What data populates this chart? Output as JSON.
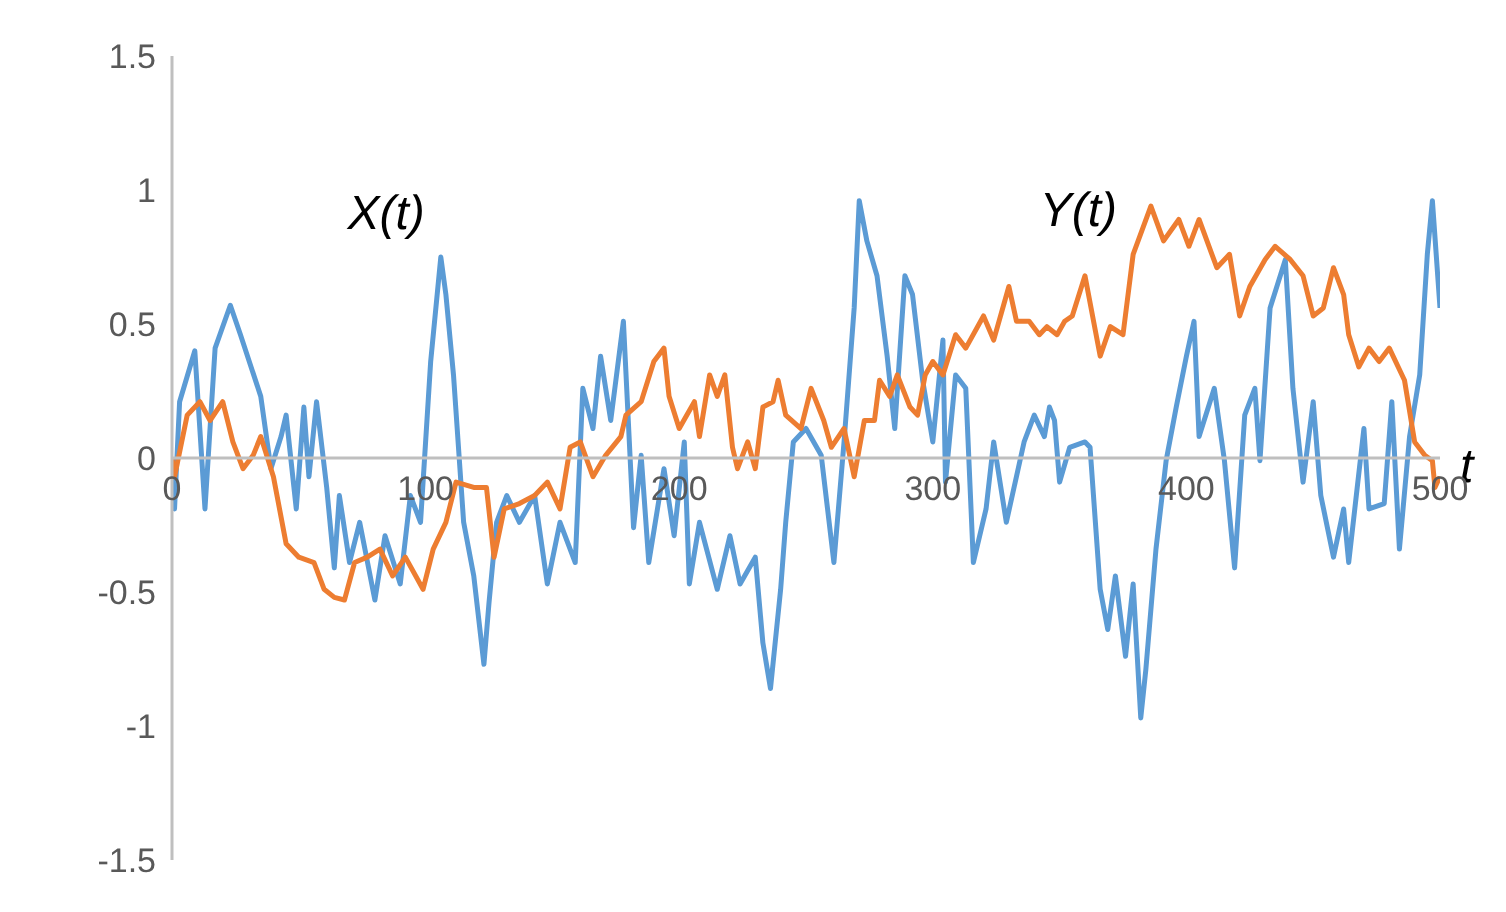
{
  "chart_data": {
    "type": "line",
    "xlabel": "t",
    "xlim": [
      0,
      500
    ],
    "xticks": [
      0,
      100,
      200,
      300,
      400,
      500
    ],
    "ylim": [
      -1.5,
      1.5
    ],
    "yticks": [
      -1.5,
      -1,
      -0.5,
      0,
      0.5,
      1,
      1.5
    ],
    "marker": "none",
    "line_style": "solid",
    "series": [
      {
        "name": "X(t)",
        "color": "#5b9bd5",
        "x": [
          0,
          1,
          3,
          9,
          13,
          17,
          23,
          27,
          35,
          39,
          43,
          45,
          49,
          52,
          54,
          57,
          61,
          64,
          66,
          70,
          74,
          80,
          84,
          90,
          94,
          98,
          102,
          106,
          108,
          111,
          115,
          119,
          123,
          125,
          128,
          132,
          137,
          143,
          148,
          153,
          159,
          162,
          166,
          169,
          173,
          178,
          182,
          185,
          188,
          194,
          198,
          202,
          204,
          208,
          215,
          220,
          224,
          230,
          233,
          236,
          240,
          242,
          245,
          250,
          256,
          261,
          265,
          269,
          271,
          274,
          278,
          282,
          285,
          289,
          292,
          296,
          300,
          304,
          305,
          309,
          313,
          316,
          321,
          324,
          329,
          336,
          340,
          344,
          346,
          348,
          350,
          354,
          360,
          362,
          366,
          369,
          372,
          376,
          379,
          382,
          384,
          388,
          392,
          396,
          400,
          403,
          405,
          411,
          415,
          419,
          423,
          427,
          429,
          433,
          439,
          442,
          446,
          450,
          453,
          458,
          462,
          464,
          470,
          472,
          478,
          481,
          484,
          488,
          492,
          495,
          497,
          500
        ],
        "values": [
          0,
          -0.19,
          0.21,
          0.4,
          -0.19,
          0.41,
          0.57,
          0.46,
          0.23,
          -0.04,
          0.08,
          0.16,
          -0.19,
          0.19,
          -0.07,
          0.21,
          -0.11,
          -0.41,
          -0.14,
          -0.39,
          -0.24,
          -0.53,
          -0.29,
          -0.47,
          -0.14,
          -0.24,
          0.36,
          0.75,
          0.61,
          0.31,
          -0.24,
          -0.44,
          -0.77,
          -0.54,
          -0.24,
          -0.14,
          -0.24,
          -0.14,
          -0.47,
          -0.24,
          -0.39,
          0.26,
          0.11,
          0.38,
          0.14,
          0.51,
          -0.26,
          0.01,
          -0.39,
          -0.04,
          -0.29,
          0.06,
          -0.47,
          -0.24,
          -0.49,
          -0.29,
          -0.47,
          -0.37,
          -0.69,
          -0.86,
          -0.49,
          -0.24,
          0.06,
          0.11,
          0.01,
          -0.39,
          0.06,
          0.56,
          0.96,
          0.81,
          0.68,
          0.38,
          0.11,
          0.68,
          0.61,
          0.29,
          0.06,
          0.44,
          -0.09,
          0.31,
          0.26,
          -0.39,
          -0.19,
          0.06,
          -0.24,
          0.06,
          0.16,
          0.08,
          0.19,
          0.14,
          -0.09,
          0.04,
          0.06,
          0.04,
          -0.49,
          -0.64,
          -0.44,
          -0.74,
          -0.47,
          -0.97,
          -0.79,
          -0.34,
          -0.01,
          0.19,
          0.38,
          0.51,
          0.08,
          0.26,
          -0.01,
          -0.41,
          0.16,
          0.26,
          -0.01,
          0.56,
          0.74,
          0.26,
          -0.09,
          0.21,
          -0.14,
          -0.37,
          -0.19,
          -0.39,
          0.11,
          -0.19,
          -0.17,
          0.21,
          -0.34,
          0.08,
          0.31,
          0.76,
          0.96,
          0.56
        ]
      },
      {
        "name": "Y(t)",
        "color": "#ed7d31",
        "x": [
          0,
          1,
          6,
          11,
          15,
          20,
          24,
          28,
          32,
          35,
          40,
          45,
          50,
          56,
          60,
          64,
          68,
          72,
          77,
          82,
          87,
          92,
          99,
          103,
          108,
          112,
          119,
          124,
          127,
          131,
          137,
          143,
          148,
          153,
          157,
          161,
          166,
          171,
          177,
          179,
          185,
          190,
          194,
          196,
          200,
          206,
          208,
          212,
          215,
          218,
          221,
          223,
          227,
          230,
          233,
          237,
          239,
          242,
          248,
          252,
          257,
          260,
          265,
          269,
          273,
          277,
          279,
          283,
          286,
          291,
          294,
          297,
          300,
          304,
          309,
          313,
          320,
          324,
          330,
          333,
          338,
          342,
          345,
          349,
          352,
          355,
          360,
          366,
          370,
          375,
          379,
          386,
          391,
          397,
          401,
          405,
          412,
          417,
          421,
          425,
          431,
          435,
          441,
          446,
          450,
          454,
          458,
          462,
          464,
          468,
          472,
          476,
          480,
          486,
          490,
          494,
          497,
          498,
          500
        ],
        "values": [
          0,
          -0.07,
          0.16,
          0.21,
          0.14,
          0.21,
          0.06,
          -0.04,
          0.01,
          0.08,
          -0.07,
          -0.32,
          -0.37,
          -0.39,
          -0.49,
          -0.52,
          -0.53,
          -0.39,
          -0.37,
          -0.34,
          -0.44,
          -0.37,
          -0.49,
          -0.34,
          -0.24,
          -0.09,
          -0.11,
          -0.11,
          -0.37,
          -0.19,
          -0.17,
          -0.14,
          -0.09,
          -0.19,
          0.04,
          0.06,
          -0.07,
          0.01,
          0.08,
          0.16,
          0.21,
          0.36,
          0.41,
          0.23,
          0.11,
          0.21,
          0.08,
          0.31,
          0.23,
          0.31,
          0.04,
          -0.04,
          0.06,
          -0.04,
          0.19,
          0.21,
          0.29,
          0.16,
          0.11,
          0.26,
          0.14,
          0.04,
          0.11,
          -0.07,
          0.14,
          0.14,
          0.29,
          0.23,
          0.31,
          0.19,
          0.16,
          0.31,
          0.36,
          0.31,
          0.46,
          0.41,
          0.53,
          0.44,
          0.64,
          0.51,
          0.51,
          0.46,
          0.49,
          0.46,
          0.51,
          0.53,
          0.68,
          0.38,
          0.49,
          0.46,
          0.76,
          0.94,
          0.81,
          0.89,
          0.79,
          0.89,
          0.71,
          0.76,
          0.53,
          0.64,
          0.74,
          0.79,
          0.74,
          0.68,
          0.53,
          0.56,
          0.71,
          0.61,
          0.46,
          0.34,
          0.41,
          0.36,
          0.41,
          0.29,
          0.06,
          0.01,
          -0.01,
          -0.11,
          -0.07
        ]
      }
    ]
  }
}
